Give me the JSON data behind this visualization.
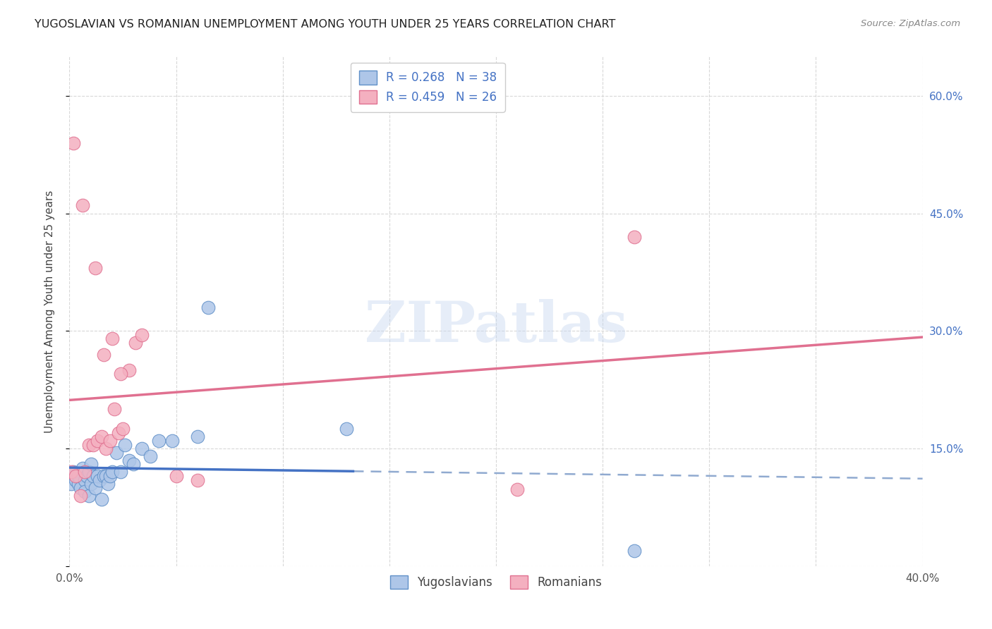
{
  "title": "YUGOSLAVIAN VS ROMANIAN UNEMPLOYMENT AMONG YOUTH UNDER 25 YEARS CORRELATION CHART",
  "source": "Source: ZipAtlas.com",
  "ylabel": "Unemployment Among Youth under 25 years",
  "xlim": [
    0.0,
    0.4
  ],
  "ylim": [
    0.0,
    0.65
  ],
  "xticks": [
    0.0,
    0.05,
    0.1,
    0.15,
    0.2,
    0.25,
    0.3,
    0.35,
    0.4
  ],
  "yticks": [
    0.0,
    0.15,
    0.3,
    0.45,
    0.6
  ],
  "watermark": "ZIPatlas",
  "yug_scatter_x": [
    0.001,
    0.001,
    0.002,
    0.003,
    0.004,
    0.004,
    0.005,
    0.006,
    0.007,
    0.007,
    0.008,
    0.009,
    0.009,
    0.01,
    0.01,
    0.011,
    0.012,
    0.013,
    0.014,
    0.015,
    0.016,
    0.017,
    0.018,
    0.019,
    0.02,
    0.022,
    0.024,
    0.026,
    0.028,
    0.03,
    0.034,
    0.038,
    0.042,
    0.048,
    0.06,
    0.065,
    0.13,
    0.265
  ],
  "yug_scatter_y": [
    0.115,
    0.105,
    0.12,
    0.11,
    0.105,
    0.115,
    0.1,
    0.125,
    0.11,
    0.095,
    0.115,
    0.09,
    0.12,
    0.105,
    0.13,
    0.115,
    0.1,
    0.115,
    0.11,
    0.085,
    0.115,
    0.115,
    0.105,
    0.115,
    0.12,
    0.145,
    0.12,
    0.155,
    0.135,
    0.13,
    0.15,
    0.14,
    0.16,
    0.16,
    0.165,
    0.33,
    0.175,
    0.02
  ],
  "rom_scatter_x": [
    0.001,
    0.003,
    0.005,
    0.007,
    0.009,
    0.011,
    0.013,
    0.015,
    0.017,
    0.019,
    0.021,
    0.023,
    0.025,
    0.028,
    0.031,
    0.034,
    0.05,
    0.06,
    0.21,
    0.265,
    0.002,
    0.006,
    0.012,
    0.016,
    0.02,
    0.024
  ],
  "rom_scatter_y": [
    0.12,
    0.115,
    0.09,
    0.12,
    0.155,
    0.155,
    0.16,
    0.165,
    0.15,
    0.16,
    0.2,
    0.17,
    0.175,
    0.25,
    0.285,
    0.295,
    0.115,
    0.11,
    0.098,
    0.42,
    0.54,
    0.46,
    0.38,
    0.27,
    0.29,
    0.245
  ],
  "yug_line_color": "#4472c4",
  "rom_line_color": "#e07090",
  "dash_line_color": "#90aad0",
  "background_color": "#ffffff",
  "grid_color": "#d8d8d8",
  "scatter_yug_color": "#aec6e8",
  "scatter_rom_color": "#f4b0c0",
  "scatter_yug_edge": "#6090c8",
  "scatter_rom_edge": "#e07090"
}
